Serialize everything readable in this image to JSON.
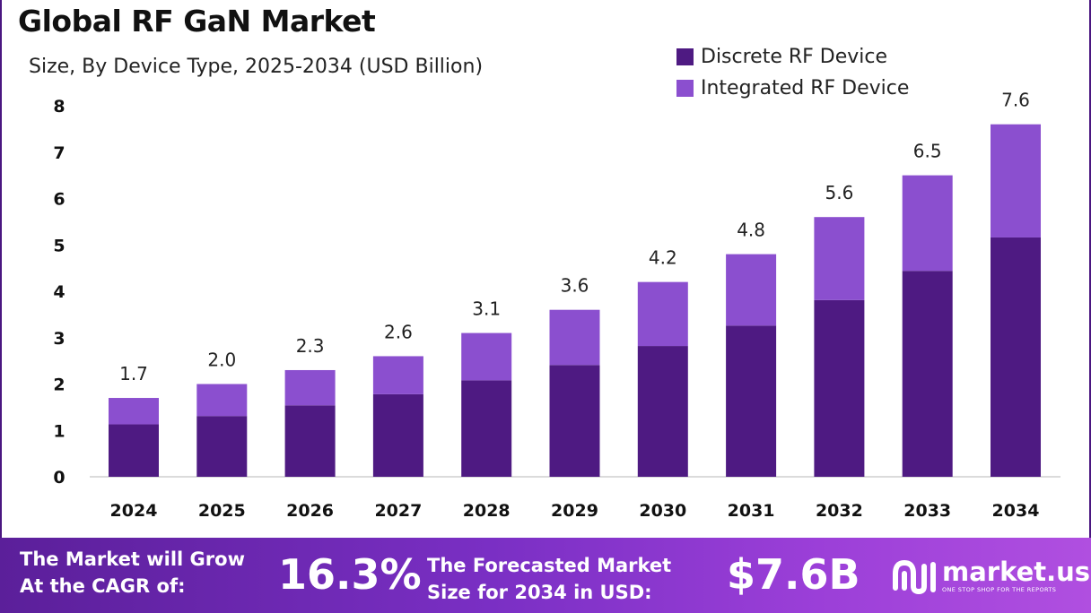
{
  "header": {
    "title": "Global RF GaN Market",
    "subtitle": "Size, By Device Type, 2025-2034 (USD Billion)"
  },
  "colors": {
    "discrete": "#4e1a82",
    "integrated": "#8b4fcf",
    "axis_text": "#111111"
  },
  "chart_data": {
    "type": "bar",
    "stacked": true,
    "categories": [
      "2024",
      "2025",
      "2026",
      "2027",
      "2028",
      "2029",
      "2030",
      "2031",
      "2032",
      "2033",
      "2034"
    ],
    "series": [
      {
        "name": "Discrete RF Device",
        "values": [
          1.13,
          1.31,
          1.54,
          1.78,
          2.08,
          2.41,
          2.82,
          3.26,
          3.81,
          4.44,
          5.16
        ]
      },
      {
        "name": "Integrated RF Device",
        "values": [
          0.57,
          0.69,
          0.76,
          0.82,
          1.02,
          1.19,
          1.38,
          1.54,
          1.79,
          2.06,
          2.44
        ]
      }
    ],
    "totals": [
      "1.7",
      "2.0",
      "2.3",
      "2.6",
      "3.1",
      "3.6",
      "4.2",
      "4.8",
      "5.6",
      "6.5",
      "7.6"
    ],
    "ylim": [
      0,
      8
    ],
    "yticks": [
      "0",
      "1",
      "2",
      "3",
      "4",
      "5",
      "6",
      "7",
      "8"
    ],
    "xlabel": "",
    "ylabel": "",
    "grid": false,
    "legend_position": "top-right"
  },
  "footer": {
    "cagr_line1": "The Market will Grow",
    "cagr_line2": "At the CAGR of:",
    "cagr_value": "16.3%",
    "forecast_line1": "The Forecasted Market",
    "forecast_line2": "Size for 2034 in USD:",
    "forecast_value": "$7.6B",
    "brand_name": "market.us",
    "brand_tagline": "ONE STOP SHOP FOR THE REPORTS"
  }
}
